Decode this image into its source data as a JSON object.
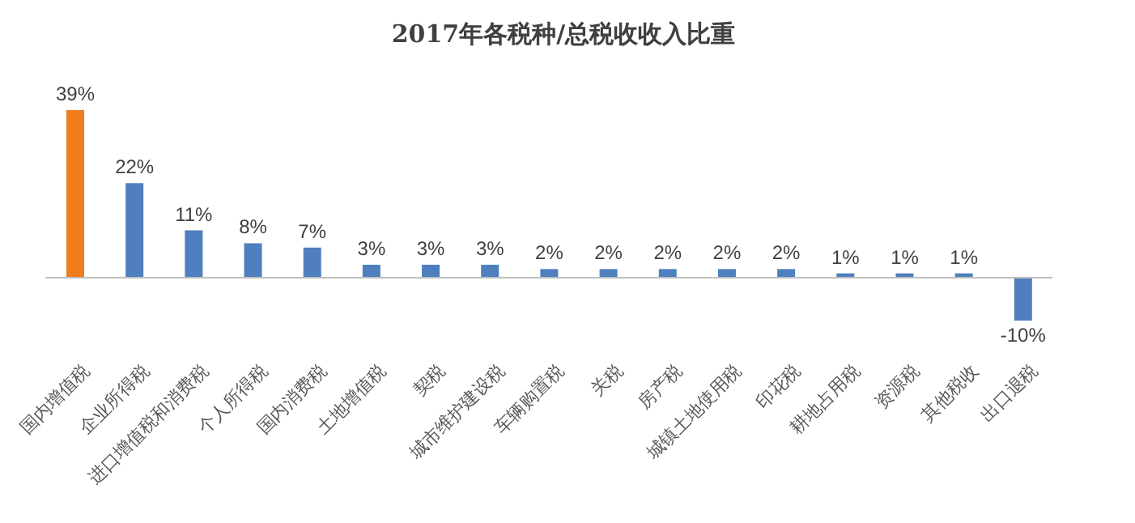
{
  "chart_data": {
    "type": "bar",
    "title": "2017年各税种/总税收收入比重",
    "categories": [
      "国内增值税",
      "企业所得税",
      "进口增值税和消费税",
      "个人所得税",
      "国内消费税",
      "土地增值税",
      "契税",
      "城市维护建设税",
      "车辆购置税",
      "关税",
      "房产税",
      "城镇土地使用税",
      "印花税",
      "耕地占用税",
      "资源税",
      "其他税收",
      "出口退税"
    ],
    "values": [
      39,
      22,
      11,
      8,
      7,
      3,
      3,
      3,
      2,
      2,
      2,
      2,
      2,
      1,
      1,
      1,
      -10
    ],
    "colors": [
      "#f07c1e",
      "#4f7fbe",
      "#4f7fbe",
      "#4f7fbe",
      "#4f7fbe",
      "#4f7fbe",
      "#4f7fbe",
      "#4f7fbe",
      "#4f7fbe",
      "#4f7fbe",
      "#4f7fbe",
      "#4f7fbe",
      "#4f7fbe",
      "#4f7fbe",
      "#4f7fbe",
      "#4f7fbe",
      "#4f7fbe"
    ],
    "value_labels": [
      "39%",
      "22%",
      "11%",
      "8%",
      "7%",
      "3%",
      "3%",
      "3%",
      "2%",
      "2%",
      "2%",
      "2%",
      "2%",
      "1%",
      "1%",
      "1%",
      "-10%"
    ]
  }
}
